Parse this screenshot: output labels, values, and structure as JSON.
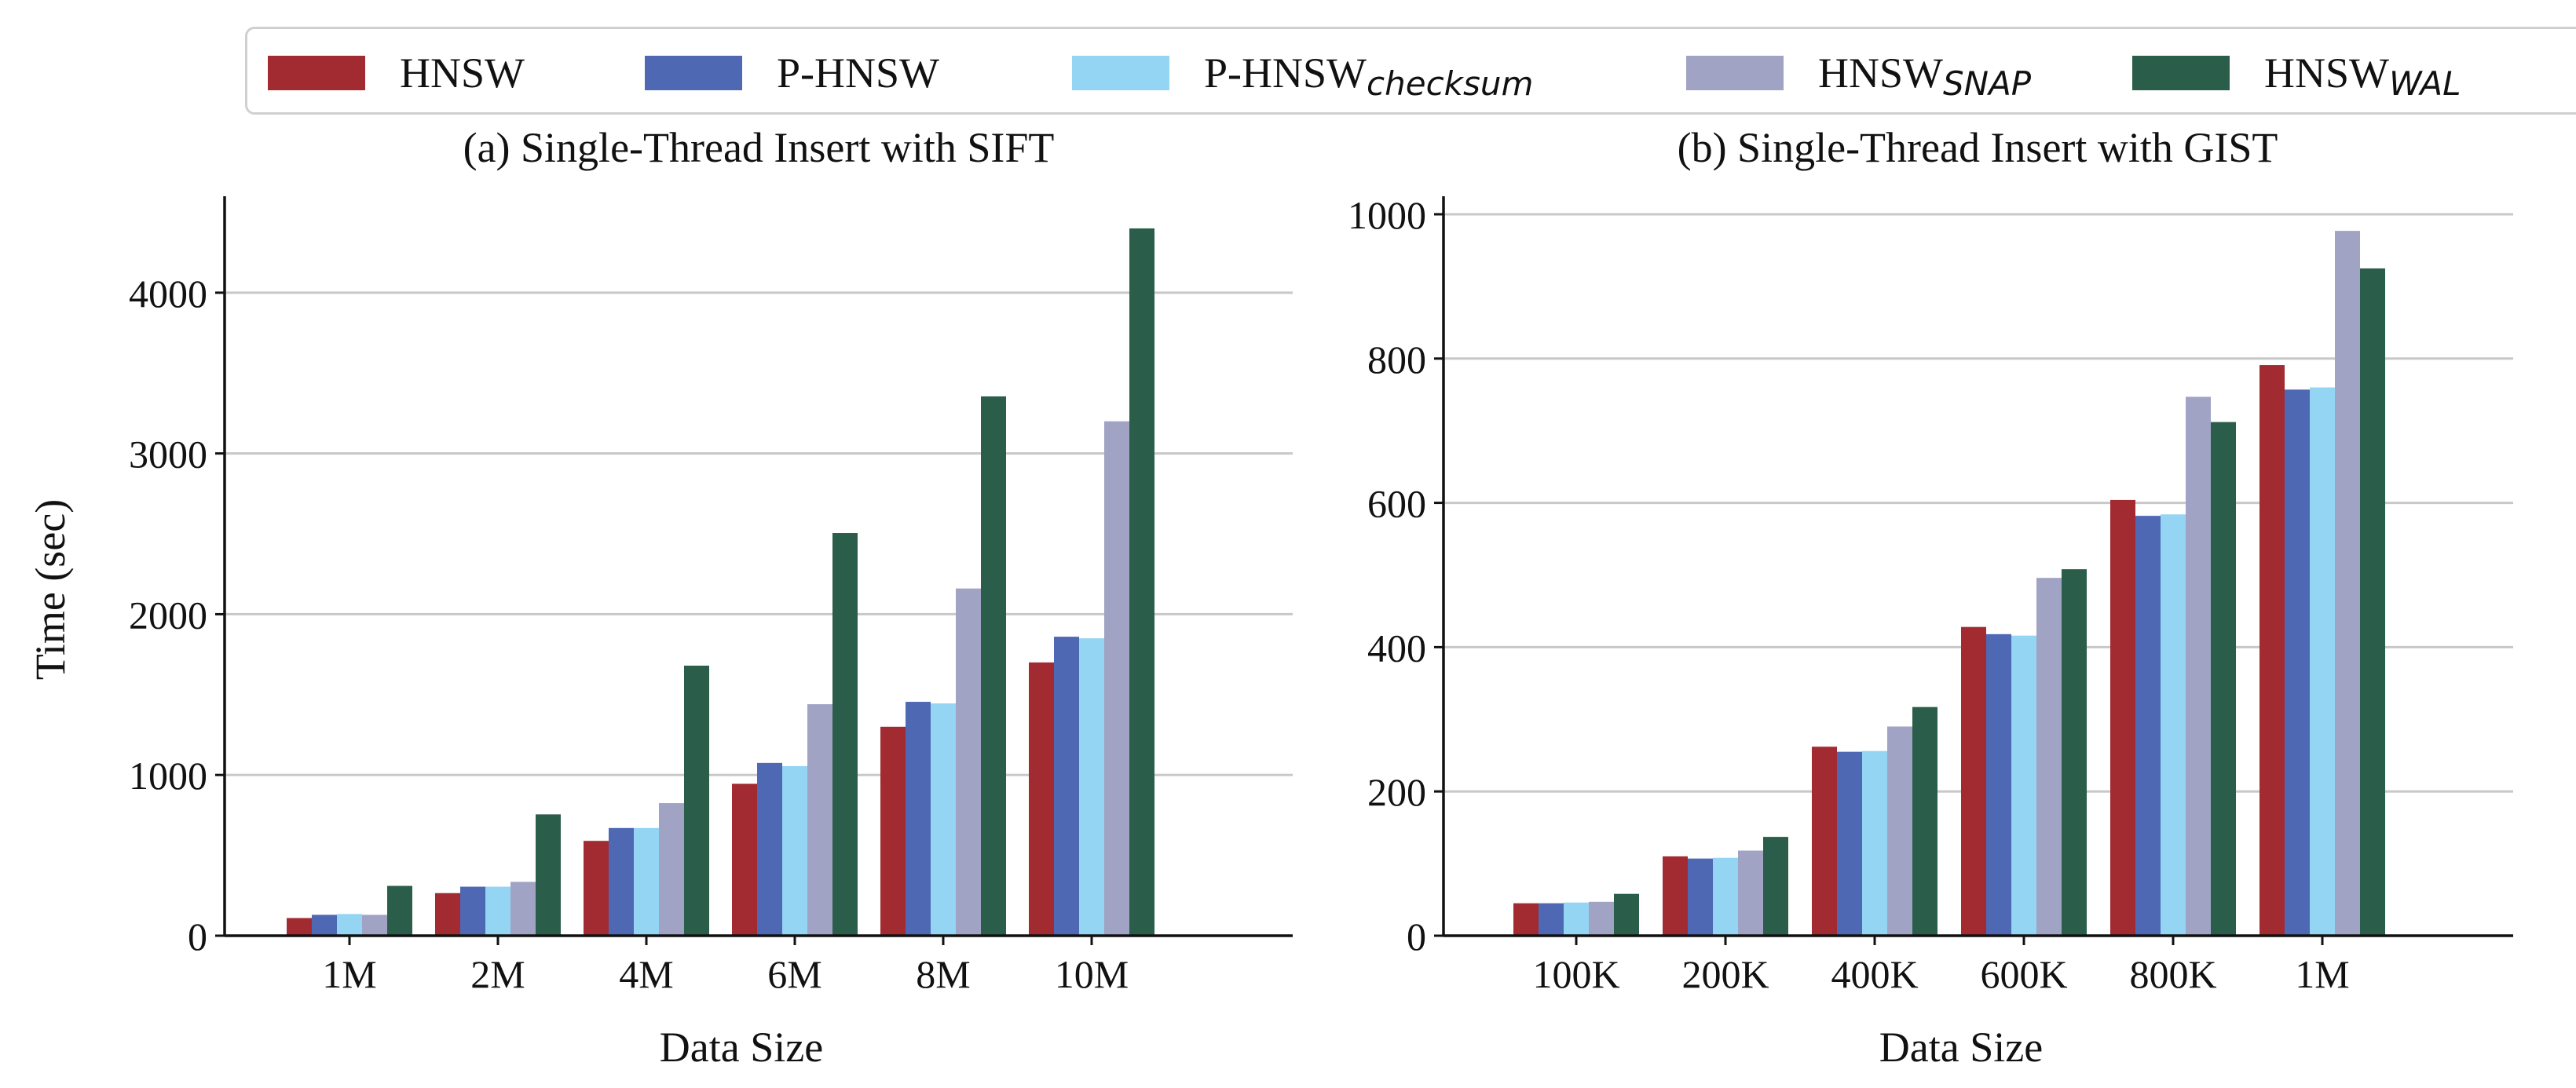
{
  "legend": {
    "items": [
      {
        "label": "HNSW",
        "sub": "",
        "color": "#a22b32"
      },
      {
        "label": "P-HNSW",
        "sub": "",
        "color": "#4e68b4"
      },
      {
        "label": "P-HNSW",
        "sub": "checksum",
        "color": "#93d5f3"
      },
      {
        "label": "HNSW",
        "sub": "SNAP",
        "color": "#a0a3c3"
      },
      {
        "label": "HNSW",
        "sub": "WAL",
        "color": "#2b5e4a"
      }
    ]
  },
  "chart_data": [
    {
      "type": "bar",
      "title": "(a) Single-Thread Insert with SIFT",
      "xlabel": "Data Size",
      "ylabel": "Time (sec)",
      "ylim": [
        0,
        4600
      ],
      "yticks": [
        0,
        1000,
        2000,
        3000,
        4000
      ],
      "categories": [
        "1M",
        "2M",
        "4M",
        "6M",
        "8M",
        "10M"
      ],
      "series": [
        {
          "name": "HNSW",
          "values": [
            110,
            265,
            590,
            945,
            1300,
            1700
          ]
        },
        {
          "name": "P-HNSW",
          "values": [
            130,
            305,
            670,
            1075,
            1455,
            1860
          ]
        },
        {
          "name": "P-HNSW_checksum",
          "values": [
            135,
            305,
            670,
            1055,
            1445,
            1850
          ]
        },
        {
          "name": "HNSW_SNAP",
          "values": [
            130,
            335,
            825,
            1440,
            2160,
            3200
          ]
        },
        {
          "name": "HNSW_WAL",
          "values": [
            310,
            755,
            1680,
            2505,
            3355,
            4400
          ]
        }
      ]
    },
    {
      "type": "bar",
      "title": "(b) Single-Thread Insert with GIST",
      "xlabel": "Data Size",
      "ylabel": "",
      "ylim": [
        0,
        1025
      ],
      "yticks": [
        0,
        200,
        400,
        600,
        800,
        1000
      ],
      "categories": [
        "100K",
        "200K",
        "400K",
        "600K",
        "800K",
        "1M"
      ],
      "series": [
        {
          "name": "HNSW",
          "values": [
            45,
            110,
            262,
            428,
            604,
            791
          ]
        },
        {
          "name": "P-HNSW",
          "values": [
            45,
            107,
            255,
            418,
            582,
            757
          ]
        },
        {
          "name": "P-HNSW_checksum",
          "values": [
            46,
            108,
            256,
            416,
            584,
            760
          ]
        },
        {
          "name": "HNSW_SNAP",
          "values": [
            47,
            118,
            290,
            496,
            747,
            977
          ]
        },
        {
          "name": "HNSW_WAL",
          "values": [
            58,
            137,
            317,
            508,
            712,
            925
          ]
        }
      ]
    }
  ]
}
